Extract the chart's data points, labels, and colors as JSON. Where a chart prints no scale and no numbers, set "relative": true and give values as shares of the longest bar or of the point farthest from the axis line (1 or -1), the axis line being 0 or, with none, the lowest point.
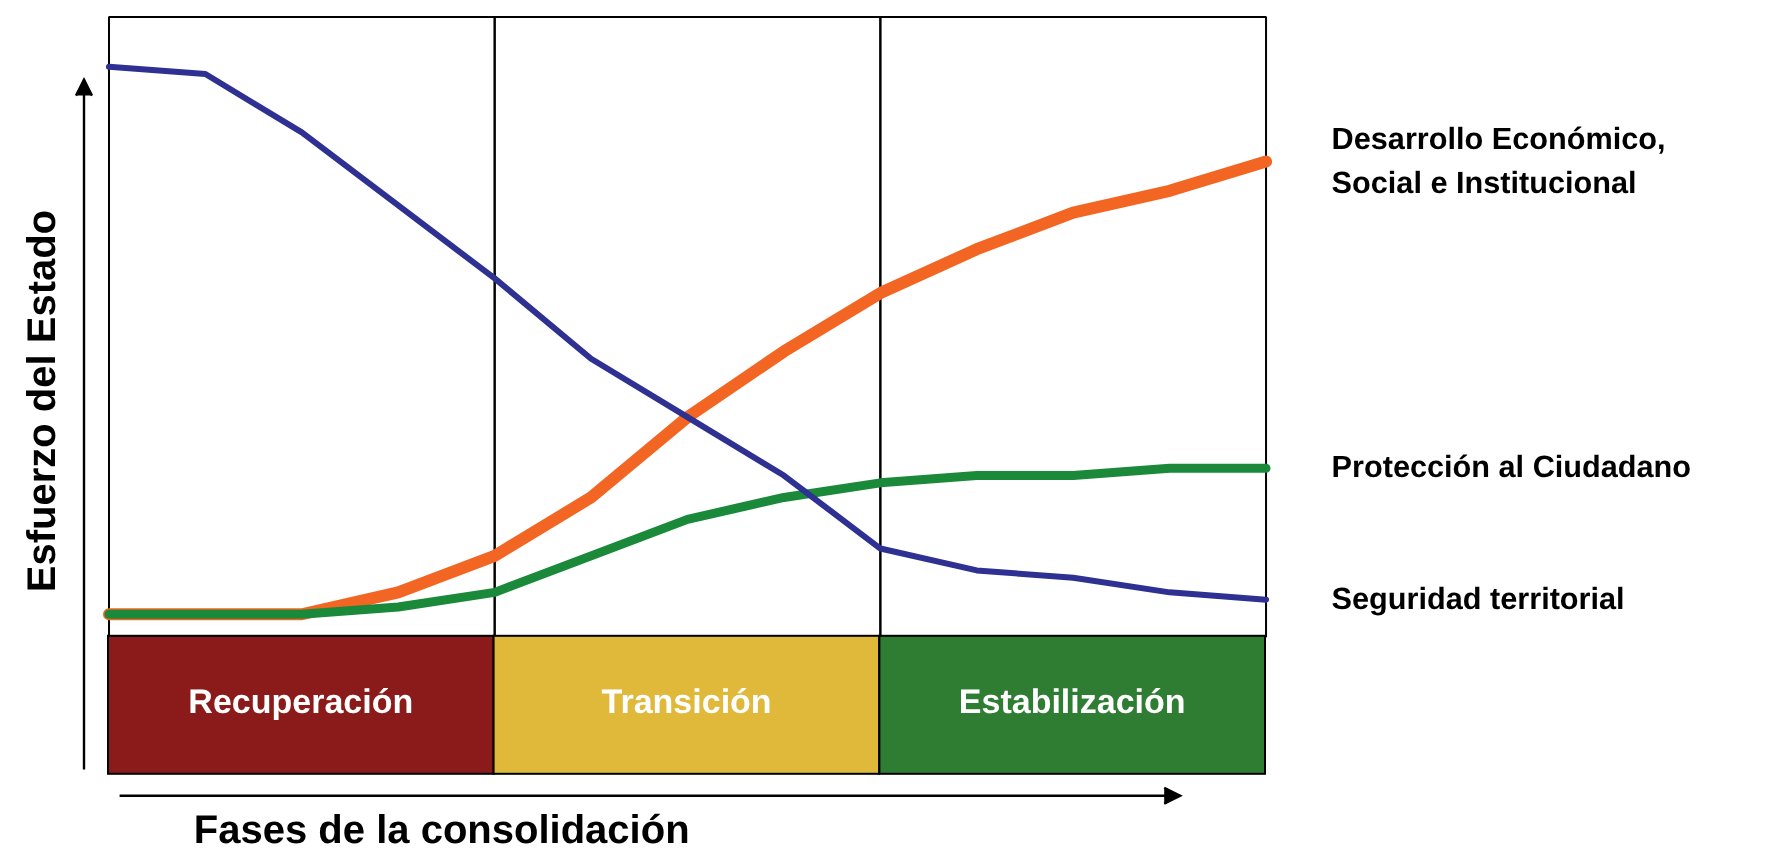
{
  "chart_data": {
    "type": "line",
    "relative": true,
    "xlabel": "Fases de la consolidación",
    "ylabel": "Esfuerzo del Estado",
    "categories": [
      null,
      null,
      null,
      null,
      null,
      null,
      null,
      null,
      null,
      null,
      null,
      null,
      null
    ],
    "tick_labels": false,
    "series": [
      {
        "name": "Desarrollo Económico, Social e Institucional",
        "color": "#f26522",
        "values": [
          0.25,
          0.25,
          0.25,
          0.28,
          0.33,
          0.41,
          0.52,
          0.61,
          0.69,
          0.75,
          0.8,
          0.83,
          0.87
        ]
      },
      {
        "name": "Protección al Ciudadano",
        "color": "#1a8a3a",
        "values": [
          0.25,
          0.25,
          0.25,
          0.26,
          0.28,
          0.33,
          0.38,
          0.41,
          0.43,
          0.44,
          0.44,
          0.45,
          0.45
        ]
      },
      {
        "name": "Seguridad territorial",
        "color": "#2e3192",
        "values": [
          1.0,
          0.99,
          0.91,
          0.81,
          0.71,
          0.6,
          0.52,
          0.44,
          0.34,
          0.31,
          0.3,
          0.28,
          0.27
        ]
      }
    ],
    "annotations": [
      "Recuperación",
      "Transición",
      "Estabilización"
    ]
  }
}
